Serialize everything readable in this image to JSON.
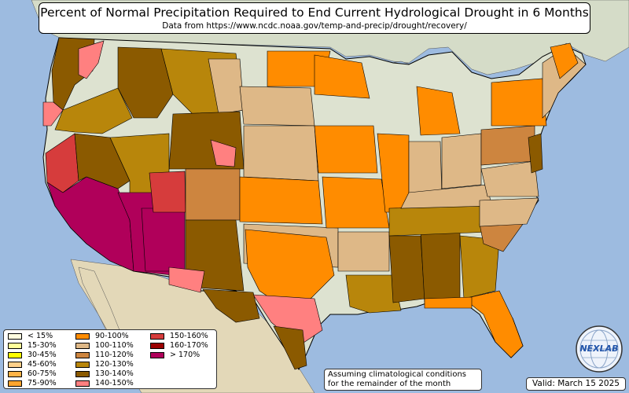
{
  "header": {
    "title": "Percent of Normal Precipitation Required to End Current Hydrological Drought in 6 Months",
    "subtitle": "Data from https://www.ncdc.noaa.gov/temp-and-precip/drought/recovery/"
  },
  "legend": {
    "items": [
      {
        "label": "< 15%",
        "color": "#fffde0"
      },
      {
        "label": "15-30%",
        "color": "#ffff99"
      },
      {
        "label": "30-45%",
        "color": "#ffff00"
      },
      {
        "label": "45-60%",
        "color": "#ffd08a"
      },
      {
        "label": "60-75%",
        "color": "#ffb347"
      },
      {
        "label": "75-90%",
        "color": "#ffa52e"
      },
      {
        "label": "90-100%",
        "color": "#ff8c00"
      },
      {
        "label": "100-110%",
        "color": "#deb887"
      },
      {
        "label": "110-120%",
        "color": "#cd853f"
      },
      {
        "label": "120-130%",
        "color": "#b8860b"
      },
      {
        "label": "130-140%",
        "color": "#8b5a00"
      },
      {
        "label": "140-150%",
        "color": "#ff8080"
      },
      {
        "label": "150-160%",
        "color": "#d63c3c"
      },
      {
        "label": "160-170%",
        "color": "#9b0000"
      },
      {
        "label": "> 170%",
        "color": "#b0005a"
      }
    ]
  },
  "note": {
    "line1": "Assuming climatological conditions",
    "line2": "for the remainder of the month"
  },
  "valid": "Valid: March 15 2025",
  "logo": {
    "text": "NEXLAB",
    "icon": "globe-icon"
  },
  "colors": {
    "ocean": "#9dbbe0",
    "land": "#dfe3d3",
    "canada": "#d7ddca",
    "mexico": "#e6dcc0"
  }
}
